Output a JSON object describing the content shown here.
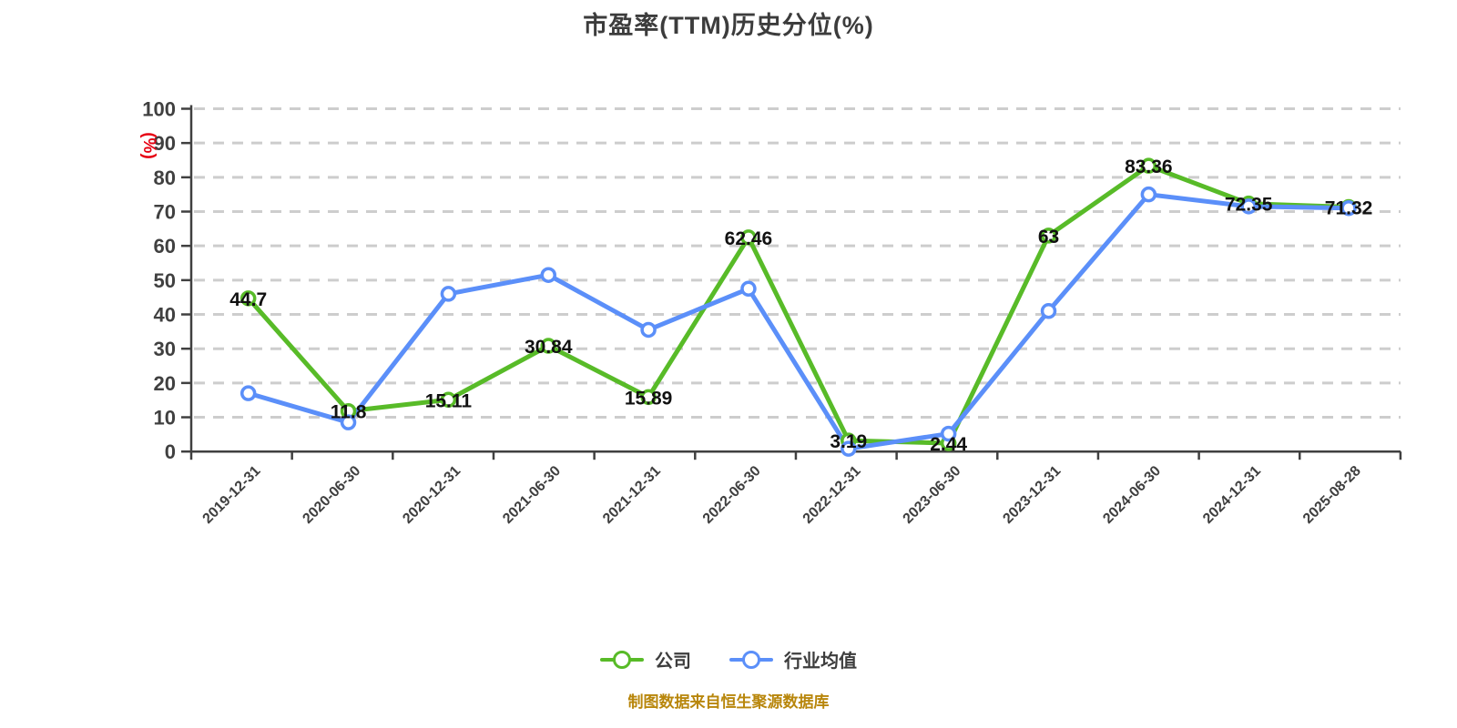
{
  "chart_data": {
    "type": "line",
    "title": "市盈率(TTM)历史分位(%)",
    "ylabel": "(%)",
    "ylabel_color": "#e60012",
    "ylim": [
      0,
      100
    ],
    "ytick_interval": 10,
    "grid": "horizontal-dashed",
    "legend_position": "bottom",
    "categories": [
      "2019-12-31",
      "2020-06-30",
      "2020-12-31",
      "2021-06-30",
      "2021-12-31",
      "2022-06-30",
      "2022-12-31",
      "2023-06-30",
      "2023-12-31",
      "2024-06-30",
      "2024-12-31",
      "2025-08-28"
    ],
    "series": [
      {
        "name": "公司",
        "color": "#58bb28",
        "values": [
          44.7,
          11.8,
          15.11,
          30.84,
          15.89,
          62.46,
          3.19,
          2.44,
          63,
          83.36,
          72.35,
          71.32
        ],
        "point_labels": [
          "44.7",
          "11.8",
          "15.11",
          "30.84",
          "15.89",
          "62.46",
          "3.19",
          "2.44",
          "63",
          "83.36",
          "72.35",
          "71.32"
        ]
      },
      {
        "name": "行业均值",
        "color": "#5b8ff9",
        "values": [
          17,
          8.5,
          46,
          51.5,
          35.5,
          47.5,
          0.8,
          5.2,
          41,
          75,
          71.5,
          71
        ],
        "point_labels": null
      }
    ],
    "source_note": "制图数据来自恒生聚源数据库"
  }
}
